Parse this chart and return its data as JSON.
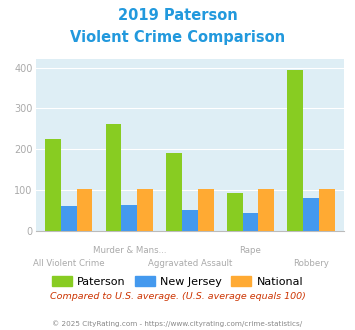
{
  "title_line1": "2019 Paterson",
  "title_line2": "Violent Crime Comparison",
  "categories": [
    "All Violent Crime",
    "Murder & Mans...",
    "Aggravated Assault",
    "Rape",
    "Robbery"
  ],
  "paterson": [
    225,
    263,
    192,
    92,
    393
  ],
  "new_jersey": [
    60,
    63,
    52,
    43,
    81
  ],
  "national": [
    103,
    104,
    104,
    104,
    103
  ],
  "bar_colors": {
    "paterson": "#88cc22",
    "new_jersey": "#4499ee",
    "national": "#ffaa33"
  },
  "ylim": [
    0,
    420
  ],
  "yticks": [
    0,
    100,
    200,
    300,
    400
  ],
  "bg_color": "#deeef5",
  "title_color": "#2299dd",
  "tick_label_color": "#aaaaaa",
  "legend_labels": [
    "Paterson",
    "New Jersey",
    "National"
  ],
  "note_text": "Compared to U.S. average. (U.S. average equals 100)",
  "footer_text": "© 2025 CityRating.com - https://www.cityrating.com/crime-statistics/",
  "note_color": "#cc3300",
  "footer_color": "#888888",
  "grid_color": "#ffffff",
  "row1_labels": [
    "",
    "Murder & Mans...",
    "",
    "Rape",
    ""
  ],
  "row2_labels": [
    "All Violent Crime",
    "",
    "Aggravated Assault",
    "",
    "Robbery"
  ]
}
